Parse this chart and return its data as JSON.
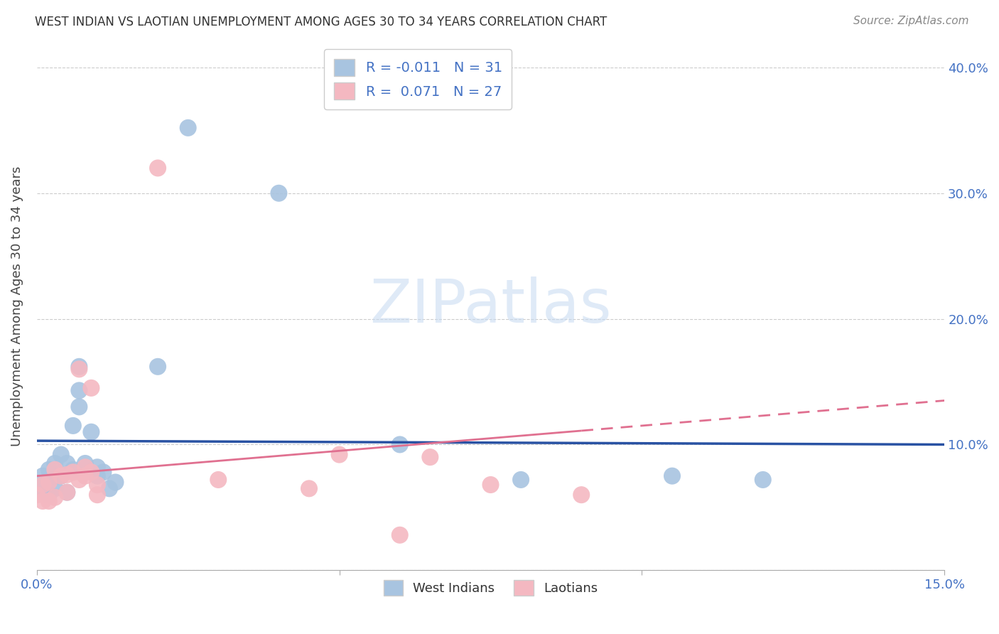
{
  "title": "WEST INDIAN VS LAOTIAN UNEMPLOYMENT AMONG AGES 30 TO 34 YEARS CORRELATION CHART",
  "source": "Source: ZipAtlas.com",
  "ylabel": "Unemployment Among Ages 30 to 34 years",
  "xlim": [
    0.0,
    0.15
  ],
  "ylim": [
    0.0,
    0.42
  ],
  "west_indian_color": "#a8c4e0",
  "laotian_color": "#f4b8c1",
  "trend_west_indian_color": "#2952a3",
  "trend_laotian_color": "#e07090",
  "legend_R_west": "-0.011",
  "legend_N_west": "31",
  "legend_R_laotian": "0.071",
  "legend_N_laotian": "27",
  "watermark_text": "ZIPatlas",
  "background_color": "#ffffff",
  "grid_color": "#cccccc",
  "tick_color": "#4472c4",
  "west_indian_x": [
    0.0,
    0.001,
    0.001,
    0.002,
    0.002,
    0.003,
    0.003,
    0.003,
    0.004,
    0.004,
    0.005,
    0.005,
    0.006,
    0.006,
    0.007,
    0.007,
    0.007,
    0.008,
    0.009,
    0.01,
    0.01,
    0.011,
    0.012,
    0.013,
    0.02,
    0.025,
    0.04,
    0.06,
    0.08,
    0.105,
    0.12
  ],
  "west_indian_y": [
    0.065,
    0.065,
    0.075,
    0.06,
    0.08,
    0.065,
    0.075,
    0.085,
    0.075,
    0.092,
    0.062,
    0.085,
    0.08,
    0.115,
    0.13,
    0.143,
    0.162,
    0.085,
    0.11,
    0.075,
    0.082,
    0.078,
    0.065,
    0.07,
    0.162,
    0.352,
    0.3,
    0.1,
    0.072,
    0.075,
    0.072
  ],
  "laotian_x": [
    0.0,
    0.001,
    0.001,
    0.002,
    0.002,
    0.003,
    0.003,
    0.004,
    0.005,
    0.005,
    0.006,
    0.007,
    0.007,
    0.008,
    0.008,
    0.009,
    0.009,
    0.01,
    0.01,
    0.02,
    0.03,
    0.045,
    0.05,
    0.06,
    0.065,
    0.075,
    0.09
  ],
  "laotian_y": [
    0.06,
    0.055,
    0.068,
    0.055,
    0.07,
    0.058,
    0.08,
    0.075,
    0.062,
    0.076,
    0.078,
    0.072,
    0.16,
    0.075,
    0.082,
    0.145,
    0.078,
    0.06,
    0.068,
    0.32,
    0.072,
    0.065,
    0.092,
    0.028,
    0.09,
    0.068,
    0.06
  ]
}
